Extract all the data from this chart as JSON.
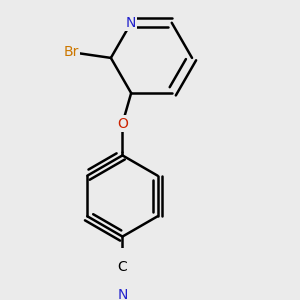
{
  "background_color": "#ebebeb",
  "bond_color": "#000000",
  "bond_width": 1.8,
  "atom_colors": {
    "N": "#2222cc",
    "O": "#cc2200",
    "Br": "#cc7700",
    "C": "#000000"
  },
  "font_size_atoms": 10
}
